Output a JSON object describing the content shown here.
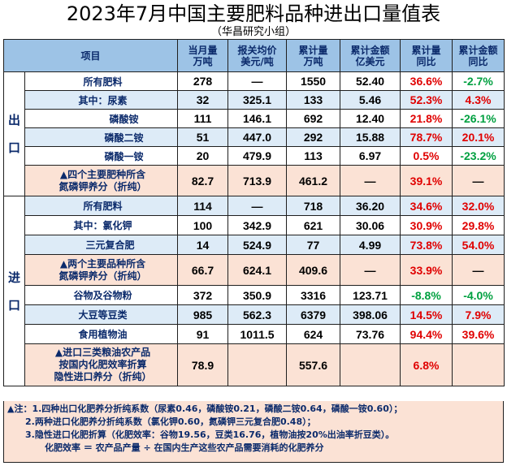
{
  "title": "2023年7月中国主要肥料品种进出口量值表",
  "subtitle": "（华昌研究小组）",
  "headers": {
    "item": "项目",
    "c1a": "当月量",
    "c1b": "万吨",
    "c2a": "报关均价",
    "c2b": "美元/吨",
    "c3a": "累计量",
    "c3b": "万吨",
    "c4a": "累计金额",
    "c4b": "亿美元",
    "c5a": "累计量",
    "c5b": "同比",
    "c6a": "累计金额",
    "c6b": "同比"
  },
  "sections": {
    "export": "出口",
    "import": "进口"
  },
  "rows": [
    {
      "name": "所有肥料",
      "monthly": "278",
      "price": "—",
      "cum": "1550",
      "amount": "52.40",
      "yoy_qty": "36.6%",
      "yoy_amt": "-2.7%"
    },
    {
      "name": "其中：尿素",
      "monthly": "32",
      "price": "325.1",
      "cum": "133",
      "amount": "5.46",
      "yoy_qty": "52.3%",
      "yoy_amt": "4.3%"
    },
    {
      "name": "磷酸铵",
      "monthly": "111",
      "price": "146.1",
      "cum": "692",
      "amount": "12.40",
      "yoy_qty": "21.8%",
      "yoy_amt": "-26.1%"
    },
    {
      "name": "磷酸二铵",
      "monthly": "51",
      "price": "447.0",
      "cum": "292",
      "amount": "15.88",
      "yoy_qty": "78.7%",
      "yoy_amt": "20.1%"
    },
    {
      "name": "磷酸一铵",
      "monthly": "20",
      "price": "479.9",
      "cum": "113",
      "amount": "6.97",
      "yoy_qty": "0.5%",
      "yoy_amt": "-23.2%"
    },
    {
      "name1": "▲四个主要肥种所含",
      "name2": "氮磷钾养分（折纯）",
      "monthly": "82.7",
      "price": "713.9",
      "cum": "461.2",
      "amount": "—",
      "yoy_qty": "39.1%",
      "yoy_amt": "—"
    },
    {
      "name": "所有肥料",
      "monthly": "114",
      "price": "—",
      "cum": "718",
      "amount": "36.20",
      "yoy_qty": "34.6%",
      "yoy_amt": "32.0%"
    },
    {
      "name": "其中：氯化钾",
      "monthly": "100",
      "price": "342.9",
      "cum": "621",
      "amount": "30.06",
      "yoy_qty": "30.9%",
      "yoy_amt": "29.8%"
    },
    {
      "name": "三元复合肥",
      "monthly": "14",
      "price": "524.9",
      "cum": "77",
      "amount": "4.99",
      "yoy_qty": "73.8%",
      "yoy_amt": "54.0%"
    },
    {
      "name1": "▲两个主要品种所含",
      "name2": "氮磷钾养分（折纯）",
      "monthly": "66.7",
      "price": "624.1",
      "cum": "409.6",
      "amount": "—",
      "yoy_qty": "33.9%",
      "yoy_amt": "—"
    },
    {
      "name": "谷物及谷物粉",
      "monthly": "372",
      "price": "350.9",
      "cum": "3316",
      "amount": "123.71",
      "yoy_qty": "-8.8%",
      "yoy_amt": "-4.0%"
    },
    {
      "name": "大豆等豆类",
      "monthly": "985",
      "price": "562.3",
      "cum": "6379",
      "amount": "398.06",
      "yoy_qty": "14.5%",
      "yoy_amt": "7.9%"
    },
    {
      "name": "食用植物油",
      "monthly": "91",
      "price": "1011.5",
      "cum": "624",
      "amount": "73.76",
      "yoy_qty": "94.4%",
      "yoy_amt": "39.6%"
    },
    {
      "name1": "▲进口三类粮油农产品",
      "name2": "按国内化肥效率折算",
      "name3": "隐性进口养分（折纯）",
      "monthly": "78.9",
      "price": "",
      "cum": "557.6",
      "amount": "",
      "yoy_qty": "6.8%",
      "yoy_amt": ""
    }
  ],
  "notes": {
    "n1": "▲注：1.四种出口化肥养分折纯系数（尿素0.46，磷酸铵0.21，磷酸二铵0.64，磷酸一铵0.60）；",
    "n2": "2.两种进口化肥养分折纯系数（氯化钾0.60，氮磷钾三元复合肥0.48）；",
    "n3": "3.隐性进口化肥折算（化肥效率：谷物19.56，豆类16.76，植物油按20%出油率折豆类）。",
    "n4": "化肥效率 ＝ 农产品产量 ÷ 在国内生产这些农产品需要消耗的化肥养分"
  },
  "colors": {
    "header_bg": "#9dc3e6",
    "blue_row": "#ddebf7",
    "orange_row": "#fbe2d5",
    "positive": "#e00000",
    "negative": "#00a040",
    "label_text": "#0b2a6b"
  }
}
